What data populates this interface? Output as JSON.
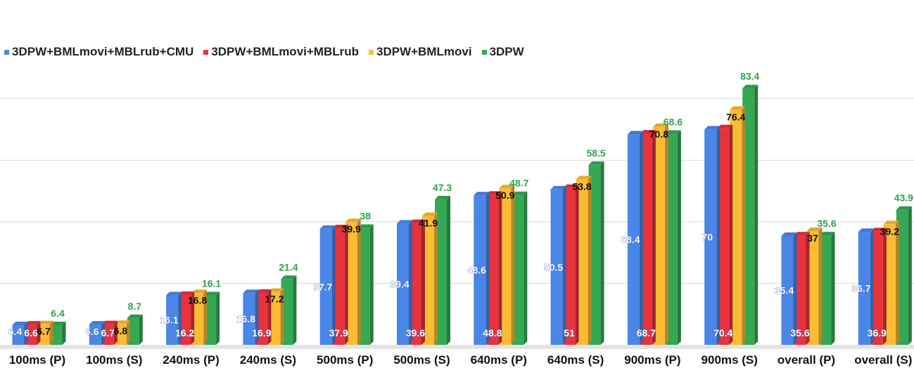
{
  "chart_data": {
    "type": "bar",
    "title": "",
    "xlabel": "",
    "ylabel": "",
    "ylim": [
      0,
      90
    ],
    "grid": true,
    "legend_position": "top-left",
    "categories": [
      "100ms (P)",
      "100ms (S)",
      "240ms (P)",
      "240ms (S)",
      "500ms (P)",
      "500ms (S)",
      "640ms (P)",
      "640ms (S)",
      "900ms (P)",
      "900ms (S)",
      "overall (P)",
      "overall (S)"
    ],
    "series": [
      {
        "name": "3DPW+BMLmovi+MBLrub+CMU",
        "color": "#4a86e8",
        "values": [
          6.4,
          6.6,
          16.1,
          16.8,
          37.7,
          39.4,
          48.6,
          50.5,
          68.4,
          70,
          35.4,
          36.7
        ]
      },
      {
        "name": "3DPW+BMLmovi+MBLrub",
        "color": "#e8323c",
        "values": [
          6.6,
          6.7,
          16.2,
          16.9,
          37.9,
          39.6,
          48.8,
          51,
          68.7,
          70.4,
          35.6,
          36.9
        ]
      },
      {
        "name": "3DPW+BMLmovi",
        "color": "#fbbc34",
        "values": [
          6.7,
          6.8,
          16.8,
          17.2,
          39.9,
          41.9,
          50.9,
          53.8,
          70.8,
          76.4,
          37,
          39.2
        ]
      },
      {
        "name": "3DPW",
        "color": "#34a853",
        "values": [
          6.4,
          8.7,
          16.1,
          21.4,
          38,
          47.3,
          48.7,
          58.5,
          68.6,
          83.4,
          35.6,
          43.9
        ]
      }
    ]
  }
}
